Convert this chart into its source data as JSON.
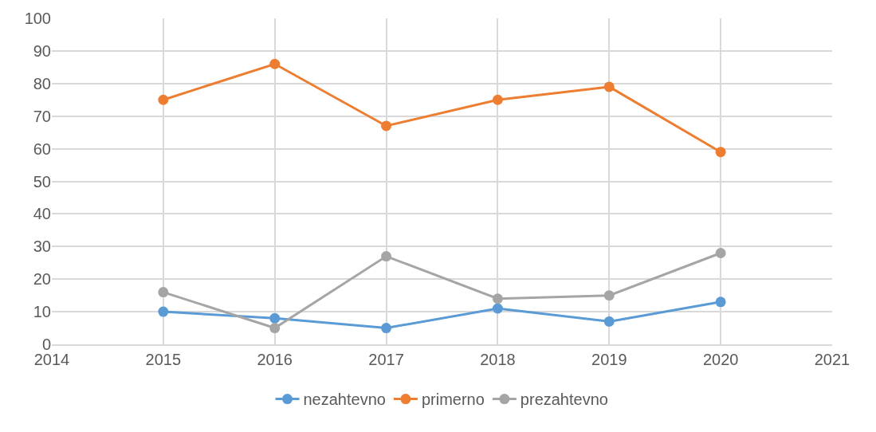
{
  "chart_data": {
    "type": "line",
    "x": [
      2015,
      2016,
      2017,
      2018,
      2019,
      2020
    ],
    "series": [
      {
        "name": "nezahtevno",
        "color": "#5b9bd5",
        "values": [
          10,
          8,
          5,
          11,
          7,
          13
        ]
      },
      {
        "name": "primerno",
        "color": "#ed7d31",
        "values": [
          75,
          86,
          67,
          75,
          79,
          59
        ]
      },
      {
        "name": "prezahtevno",
        "color": "#a5a5a5",
        "values": [
          16,
          5,
          27,
          14,
          15,
          28
        ]
      }
    ],
    "xlim": [
      2014,
      2021
    ],
    "xticks": [
      2014,
      2015,
      2016,
      2017,
      2018,
      2019,
      2020,
      2021
    ],
    "ylim": [
      0,
      100
    ],
    "yticks": [
      0,
      10,
      20,
      30,
      40,
      50,
      60,
      70,
      80,
      90,
      100
    ],
    "grid": true,
    "legend": "bottom",
    "marker": "circle",
    "line_style": "solid"
  }
}
